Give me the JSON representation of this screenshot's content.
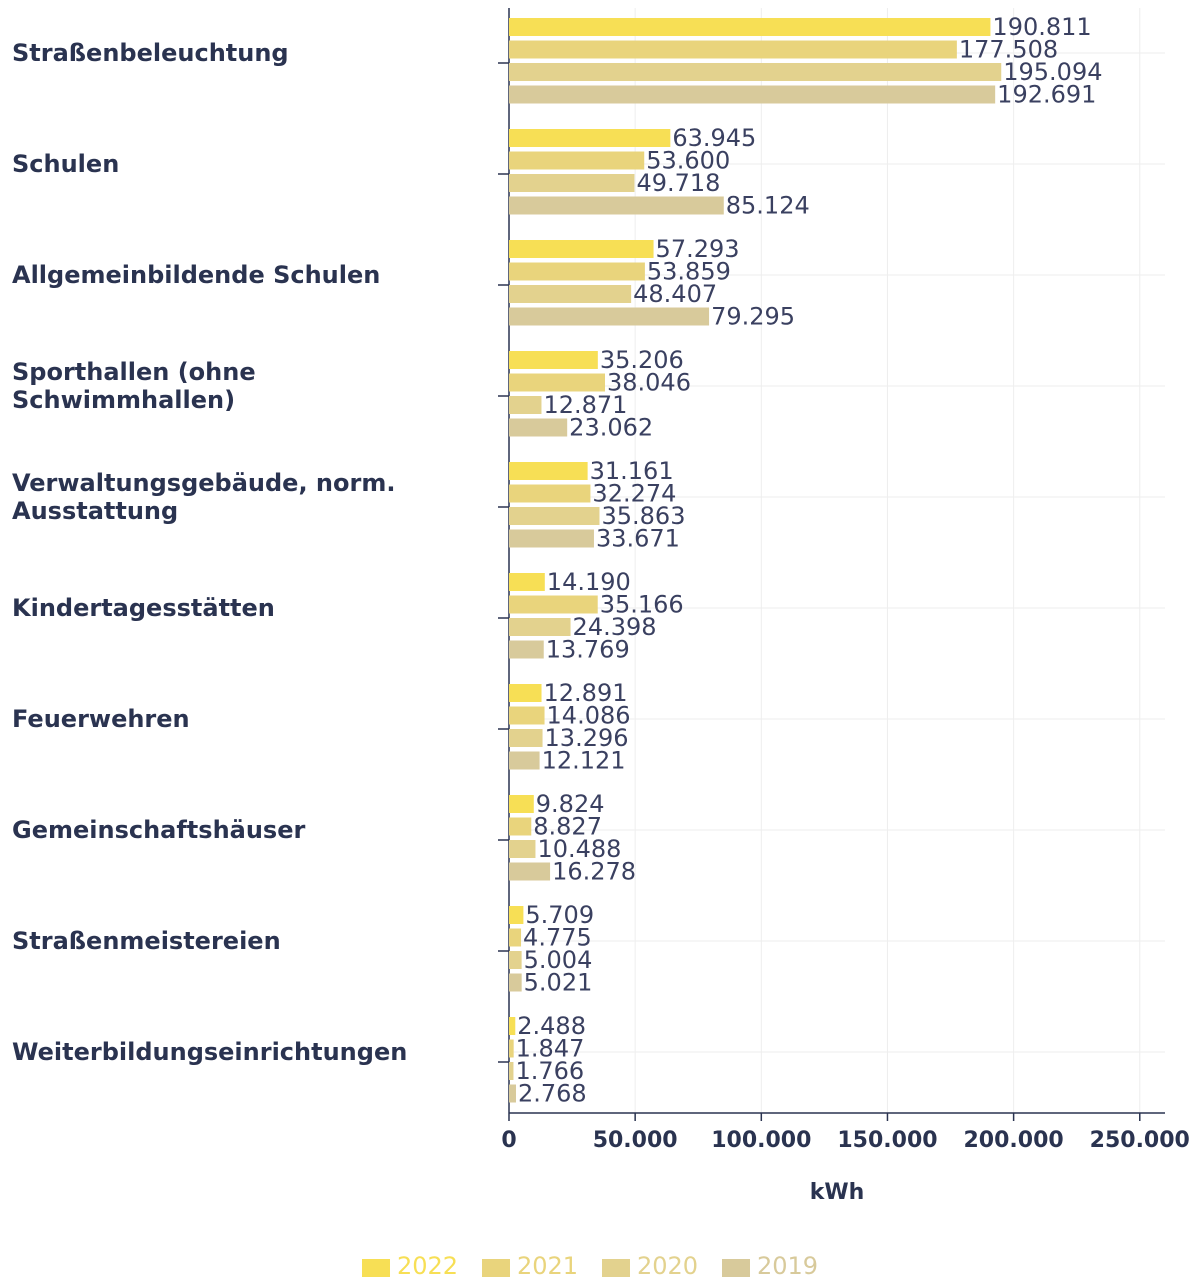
{
  "chart_data": {
    "type": "bar",
    "orientation": "horizontal",
    "x_label": "kWh",
    "categories": [
      "Straßenbeleuchtung",
      "Schulen",
      "Allgemeinbildende Schulen",
      "Sporthallen (ohne Schwimmhallen)",
      "Verwaltungsgebäude, norm. Ausstattung",
      "Kindertagesstätten",
      "Feuerwehren",
      "Gemeinschaftshäuser",
      "Straßenmeistereien",
      "Weiterbildungseinrichtungen"
    ],
    "series": [
      {
        "name": "2022",
        "color": "#f7df55",
        "values": [
          190811,
          63945,
          57293,
          35206,
          31161,
          14190,
          12891,
          9824,
          5709,
          2488
        ],
        "value_labels": [
          "190.811",
          "63.945",
          "57.293",
          "35.206",
          "31.161",
          "14.190",
          "12.891",
          "9.824",
          "5.709",
          "2.488"
        ]
      },
      {
        "name": "2021",
        "color": "#e9d47c",
        "values": [
          177508,
          53600,
          53859,
          38046,
          32274,
          35166,
          14086,
          8827,
          4775,
          1847
        ],
        "value_labels": [
          "177.508",
          "53.600",
          "53.859",
          "38.046",
          "32.274",
          "35.166",
          "14.086",
          "8.827",
          "4.775",
          "1.847"
        ]
      },
      {
        "name": "2020",
        "color": "#e3d28e",
        "values": [
          195094,
          49718,
          48407,
          12871,
          35863,
          24398,
          13296,
          10488,
          5004,
          1766
        ],
        "value_labels": [
          "195.094",
          "49.718",
          "48.407",
          "12.871",
          "35.863",
          "24.398",
          "13.296",
          "10.488",
          "5.004",
          "1.766"
        ]
      },
      {
        "name": "2019",
        "color": "#d8ca9b",
        "values": [
          192691,
          85124,
          79295,
          23062,
          33671,
          13769,
          12121,
          16278,
          5021,
          2768
        ],
        "value_labels": [
          "192.691",
          "85.124",
          "79.295",
          "23.062",
          "33.671",
          "13.769",
          "12.121",
          "16.278",
          "5.021",
          "2.768"
        ]
      }
    ],
    "xlim": [
      0,
      260000
    ],
    "xticks": [
      0,
      {
        "value": 50000,
        "label": "50.000"
      },
      {
        "value": 100000,
        "label": "100.000"
      },
      {
        "value": 150000,
        "label": "150.000"
      },
      {
        "value": 200000,
        "label": "200.000"
      },
      {
        "value": 250000,
        "label": "250.000"
      }
    ],
    "grid": true,
    "legend": "bottom"
  }
}
